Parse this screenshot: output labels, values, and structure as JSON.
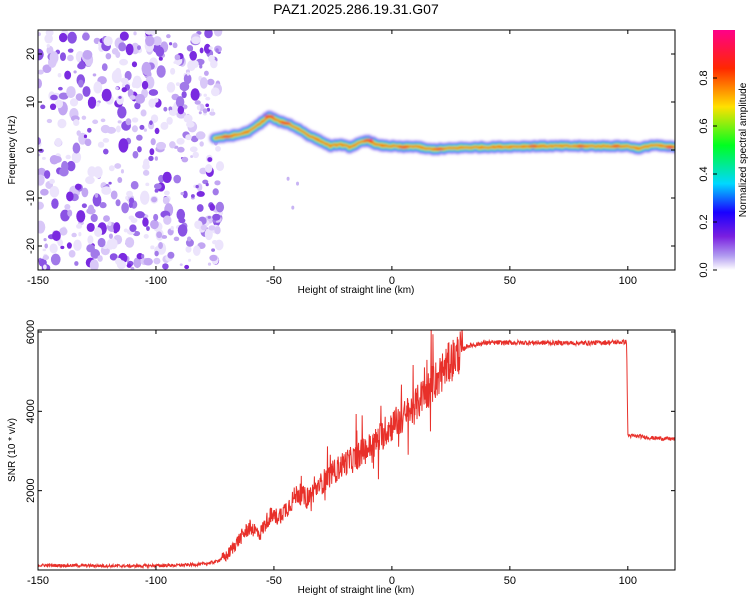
{
  "title": "PAZ1.2025.286.19.31.G07",
  "chart_data": [
    {
      "type": "heatmap",
      "title": "PAZ1.2025.286.19.31.G07",
      "xlabel": "Height of straight line (km)",
      "ylabel": "Frequency (Hz)",
      "xlim": [
        -150,
        120
      ],
      "ylim": [
        -25,
        25
      ],
      "xticks": [
        -150,
        -100,
        -50,
        0,
        50,
        100
      ],
      "yticks": [
        -20,
        -10,
        0,
        10,
        20
      ],
      "ridge": {
        "x": [
          -75,
          -70,
          -65,
          -60,
          -56,
          -52,
          -48,
          -44,
          -40,
          -35,
          -30,
          -26,
          -22,
          -18,
          -14,
          -10,
          -6,
          0,
          5,
          10,
          15,
          20,
          30,
          40,
          60,
          80,
          100,
          105,
          110,
          120
        ],
        "freq": [
          2.5,
          2.8,
          3.2,
          4.0,
          5.5,
          7.0,
          6.0,
          5.5,
          4.5,
          3.0,
          1.8,
          0.8,
          1.2,
          0.6,
          1.4,
          2.0,
          1.0,
          0.8,
          0.6,
          0.8,
          0.2,
          0.2,
          0.5,
          0.6,
          0.8,
          0.8,
          0.8,
          0.3,
          1.0,
          0.6
        ]
      },
      "noise_region_km": [
        -150,
        -75
      ],
      "colorbar": {
        "label": "Normalized spectral amplitude",
        "range": [
          0,
          1
        ],
        "ticks": [
          "0.0",
          "0.2",
          "0.4",
          "0.6",
          "0.8"
        ],
        "tick_values": [
          0,
          0.2,
          0.4,
          0.6,
          0.8
        ],
        "stops": [
          "#ffffff",
          "#b09af0",
          "#7a1fe0",
          "#1a00ff",
          "#00d8ff",
          "#00ff20",
          "#ffe000",
          "#ff2800",
          "#ff0088"
        ]
      }
    },
    {
      "type": "line",
      "xlabel": "Height of straight line (km)",
      "ylabel": "SNR (10 * v/v)",
      "xlim": [
        -150,
        120
      ],
      "ylim": [
        0,
        6050
      ],
      "xticks": [
        -150,
        -100,
        -50,
        0,
        50,
        100
      ],
      "yticks": [
        2000,
        4000,
        6000
      ],
      "series": [
        {
          "name": "SNR",
          "color": "#e8302a",
          "x": [
            -150,
            -130,
            -110,
            -90,
            -80,
            -75,
            -70,
            -67,
            -63,
            -60,
            -56,
            -52,
            -48,
            -44,
            -40,
            -36,
            -32,
            -28,
            -24,
            -20,
            -16,
            -12,
            -8,
            -4,
            0,
            4,
            8,
            12,
            16,
            20,
            24,
            28,
            32,
            40,
            60,
            80,
            99.5,
            100,
            101,
            105,
            110,
            120
          ],
          "y": [
            120,
            110,
            100,
            120,
            150,
            200,
            350,
            600,
            900,
            1100,
            900,
            1350,
            1350,
            1600,
            1950,
            1800,
            2050,
            2300,
            2500,
            2700,
            2800,
            3000,
            3150,
            3400,
            3650,
            3800,
            4000,
            4300,
            4600,
            4900,
            5200,
            5450,
            5650,
            5730,
            5730,
            5720,
            5750,
            3400,
            3380,
            3370,
            3330,
            3300
          ]
        }
      ]
    }
  ]
}
